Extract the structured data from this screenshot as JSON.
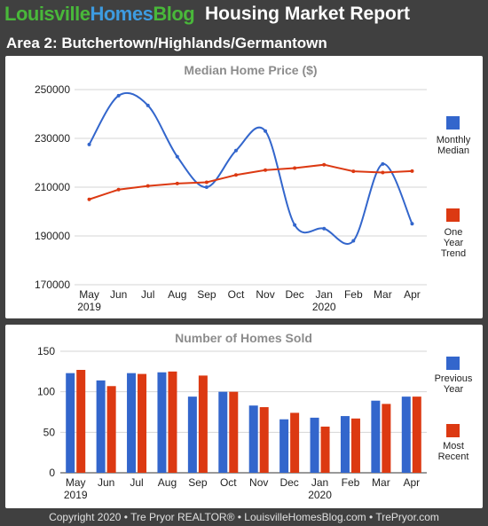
{
  "header": {
    "brand_part1": "Louisville",
    "brand_part2": "Homes",
    "brand_part3": "Blog",
    "report_title": "Housing Market Report",
    "area_title": "Area 2: Butchertown/Highlands/Germantown"
  },
  "footer": {
    "text": "Copyright 2020 • Tre Pryor REALTOR® • LouisvilleHomesBlog.com • TrePryor.com"
  },
  "colors": {
    "blue": "#3366cc",
    "red": "#dc3912",
    "brand_green": "#49b83a",
    "brand_blue": "#3d9be0"
  },
  "chart_data": [
    {
      "type": "line",
      "title": "Median Home Price ($)",
      "categories": [
        "May",
        "Jun",
        "Jul",
        "Aug",
        "Sep",
        "Oct",
        "Nov",
        "Dec",
        "Jan",
        "Feb",
        "Mar",
        "Apr"
      ],
      "year_labels": [
        {
          "index": 0,
          "label": "2019"
        },
        {
          "index": 8,
          "label": "2020"
        }
      ],
      "ylim": [
        170000,
        250000
      ],
      "yticks": [
        170000,
        190000,
        210000,
        230000,
        250000
      ],
      "grid": true,
      "legend_position": "right",
      "series": [
        {
          "name": "Monthly Median",
          "color": "#3366cc",
          "smooth": true,
          "values": [
            227500,
            247500,
            243500,
            222500,
            210000,
            225000,
            233000,
            194500,
            193000,
            188000,
            219500,
            195000
          ]
        },
        {
          "name": "One Year Trend",
          "color": "#dc3912",
          "smooth": false,
          "values": [
            205000,
            209000,
            210500,
            211500,
            212000,
            215000,
            217000,
            217800,
            219200,
            216500,
            216000,
            216600
          ]
        }
      ]
    },
    {
      "type": "bar",
      "title": "Number of Homes Sold",
      "categories": [
        "May",
        "Jun",
        "Jul",
        "Aug",
        "Sep",
        "Oct",
        "Nov",
        "Dec",
        "Jan",
        "Feb",
        "Mar",
        "Apr"
      ],
      "year_labels": [
        {
          "index": 0,
          "label": "2019"
        },
        {
          "index": 8,
          "label": "2020"
        }
      ],
      "ylim": [
        0,
        150
      ],
      "yticks": [
        0,
        50,
        100,
        150
      ],
      "grid": true,
      "legend_position": "right",
      "series": [
        {
          "name": "Previous Year",
          "color": "#3366cc",
          "values": [
            123,
            114,
            123,
            124,
            94,
            100,
            83,
            66,
            68,
            70,
            89,
            94
          ]
        },
        {
          "name": "Most Recent",
          "color": "#dc3912",
          "values": [
            127,
            107,
            122,
            125,
            120,
            100,
            81,
            74,
            57,
            67,
            85,
            94
          ]
        }
      ]
    }
  ]
}
